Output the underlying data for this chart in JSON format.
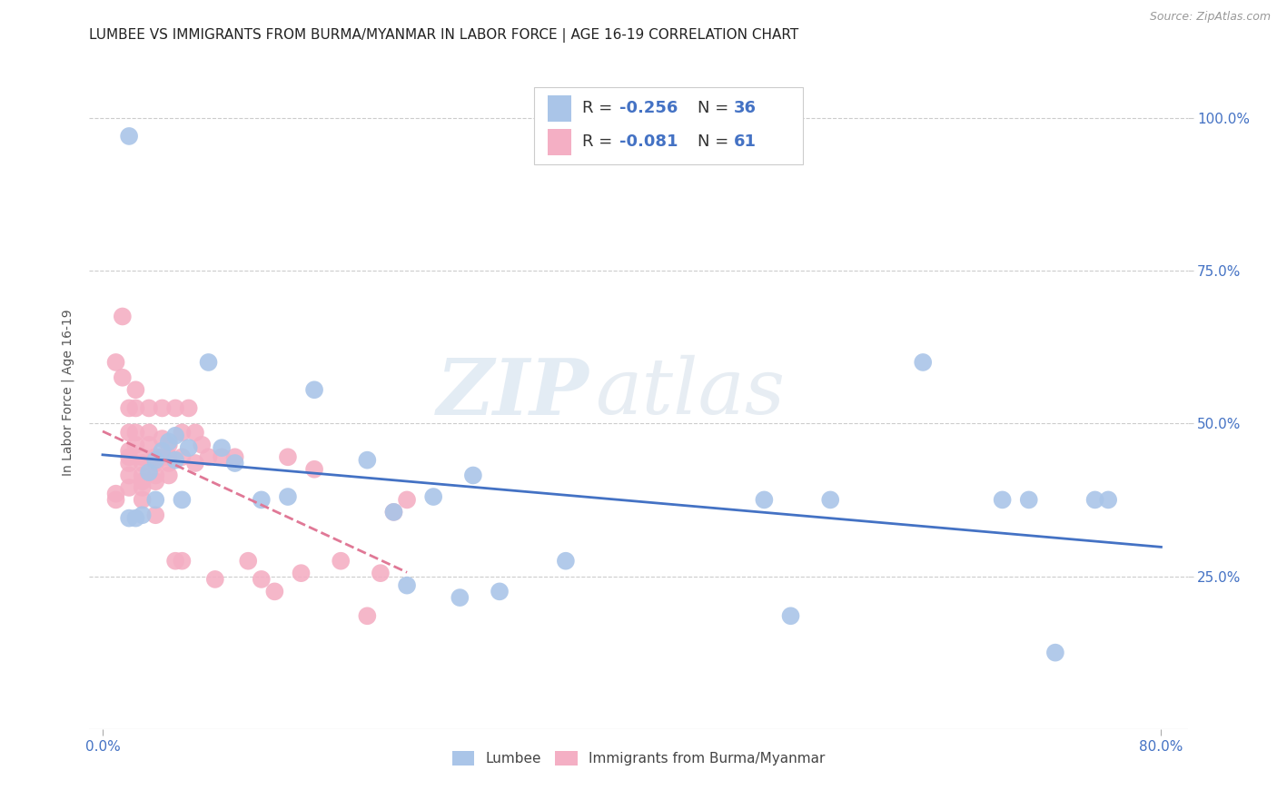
{
  "title": "LUMBEE VS IMMIGRANTS FROM BURMA/MYANMAR IN LABOR FORCE | AGE 16-19 CORRELATION CHART",
  "source": "Source: ZipAtlas.com",
  "tick_color": "#4472c4",
  "ylabel": "In Labor Force | Age 16-19",
  "x_tick_labels_left": [
    "0.0%"
  ],
  "x_tick_vals_left": [
    0.0
  ],
  "x_tick_labels_right": [
    "80.0%"
  ],
  "x_tick_vals_right": [
    0.8
  ],
  "y_tick_labels": [
    "100.0%",
    "75.0%",
    "50.0%",
    "25.0%"
  ],
  "y_tick_vals": [
    1.0,
    0.75,
    0.5,
    0.25
  ],
  "xlim": [
    -0.01,
    0.82
  ],
  "ylim": [
    0.0,
    1.1
  ],
  "blue_color": "#aac5e8",
  "blue_line_color": "#4472c4",
  "pink_color": "#f4afc4",
  "pink_line_color": "#e07896",
  "watermark_zip": "ZIP",
  "watermark_atlas": "atlas",
  "legend_r_blue": "-0.256",
  "legend_n_blue": "36",
  "legend_r_pink": "-0.081",
  "legend_n_pink": "61",
  "blue_points_x": [
    0.02,
    0.02,
    0.025,
    0.03,
    0.035,
    0.04,
    0.04,
    0.045,
    0.05,
    0.055,
    0.055,
    0.06,
    0.065,
    0.08,
    0.09,
    0.1,
    0.12,
    0.14,
    0.16,
    0.2,
    0.22,
    0.23,
    0.25,
    0.27,
    0.28,
    0.3,
    0.35,
    0.5,
    0.52,
    0.55,
    0.62,
    0.68,
    0.7,
    0.72,
    0.75,
    0.76
  ],
  "blue_points_y": [
    0.97,
    0.345,
    0.345,
    0.35,
    0.42,
    0.44,
    0.375,
    0.455,
    0.47,
    0.48,
    0.44,
    0.375,
    0.46,
    0.6,
    0.46,
    0.435,
    0.375,
    0.38,
    0.555,
    0.44,
    0.355,
    0.235,
    0.38,
    0.215,
    0.415,
    0.225,
    0.275,
    0.375,
    0.185,
    0.375,
    0.6,
    0.375,
    0.375,
    0.125,
    0.375,
    0.375
  ],
  "pink_points_x": [
    0.01,
    0.01,
    0.01,
    0.015,
    0.015,
    0.02,
    0.02,
    0.02,
    0.02,
    0.02,
    0.02,
    0.02,
    0.025,
    0.025,
    0.025,
    0.025,
    0.03,
    0.03,
    0.03,
    0.03,
    0.03,
    0.03,
    0.035,
    0.035,
    0.035,
    0.04,
    0.04,
    0.04,
    0.04,
    0.04,
    0.045,
    0.045,
    0.045,
    0.05,
    0.05,
    0.05,
    0.05,
    0.055,
    0.055,
    0.06,
    0.06,
    0.06,
    0.065,
    0.07,
    0.07,
    0.075,
    0.08,
    0.085,
    0.09,
    0.1,
    0.11,
    0.12,
    0.13,
    0.14,
    0.15,
    0.16,
    0.18,
    0.2,
    0.21,
    0.22,
    0.23
  ],
  "pink_points_y": [
    0.6,
    0.385,
    0.375,
    0.675,
    0.575,
    0.525,
    0.485,
    0.455,
    0.445,
    0.435,
    0.415,
    0.395,
    0.555,
    0.525,
    0.485,
    0.465,
    0.445,
    0.435,
    0.415,
    0.405,
    0.395,
    0.375,
    0.525,
    0.485,
    0.465,
    0.445,
    0.435,
    0.415,
    0.405,
    0.35,
    0.525,
    0.475,
    0.445,
    0.465,
    0.445,
    0.435,
    0.415,
    0.275,
    0.525,
    0.485,
    0.445,
    0.275,
    0.525,
    0.485,
    0.435,
    0.465,
    0.445,
    0.245,
    0.445,
    0.445,
    0.275,
    0.245,
    0.225,
    0.445,
    0.255,
    0.425,
    0.275,
    0.185,
    0.255,
    0.355,
    0.375
  ],
  "grid_color": "#cccccc",
  "background_color": "#ffffff",
  "title_fontsize": 11,
  "axis_label_fontsize": 10,
  "tick_fontsize": 11,
  "legend_fontsize": 13,
  "bottom_legend_label1": "Lumbee",
  "bottom_legend_label2": "Immigrants from Burma/Myanmar"
}
